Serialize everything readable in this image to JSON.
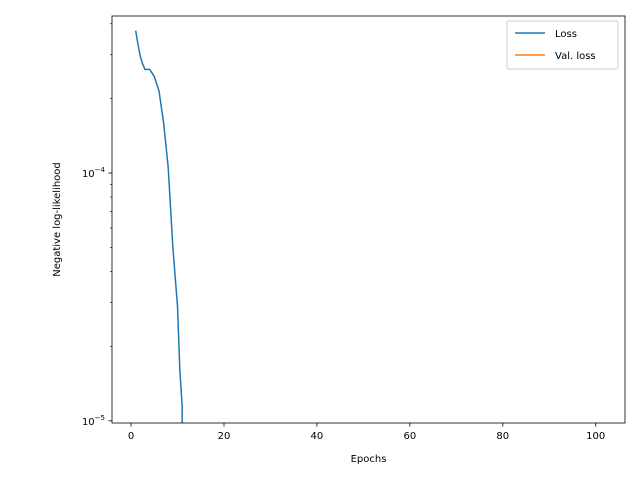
{
  "chart_data": {
    "type": "line",
    "title": "",
    "xlabel": "Epochs",
    "ylabel": "Negative log-likelihood",
    "yscale": "log",
    "xlim": [
      -4.1,
      106.3
    ],
    "ylim": [
      9.8e-06,
      0.00043
    ],
    "x_ticks": [
      0,
      20,
      40,
      60,
      80,
      100
    ],
    "x_tick_labels": [
      "0",
      "20",
      "40",
      "60",
      "80",
      "100"
    ],
    "y_major_ticks": [
      1e-05,
      0.0001
    ],
    "y_major_tick_labels": [
      {
        "base": "10",
        "exp": "−5"
      },
      {
        "base": "10",
        "exp": "−4"
      }
    ],
    "y_minor_ticks": [
      2e-05,
      3e-05,
      4e-05,
      5e-05,
      6e-05,
      7e-05,
      8e-05,
      9e-05,
      0.0002,
      0.0003,
      0.0004
    ],
    "grid": false,
    "legend_position": "upper-right",
    "series": [
      {
        "name": "Loss",
        "color": "#1f77b4",
        "x": [
          1,
          1.5,
          2,
          2.5,
          3,
          4,
          5,
          6,
          7,
          8,
          9,
          10,
          10.5,
          11,
          11
        ],
        "y": [
          0.000375,
          0.00033,
          0.000295,
          0.000275,
          0.000262,
          0.000262,
          0.000245,
          0.000215,
          0.00016,
          0.000105,
          5e-05,
          2.9e-05,
          1.6e-05,
          1.15e-05,
          9.8e-06
        ]
      },
      {
        "name": "Val. loss",
        "color": "#ff7f0e",
        "x": [],
        "y": []
      }
    ]
  }
}
